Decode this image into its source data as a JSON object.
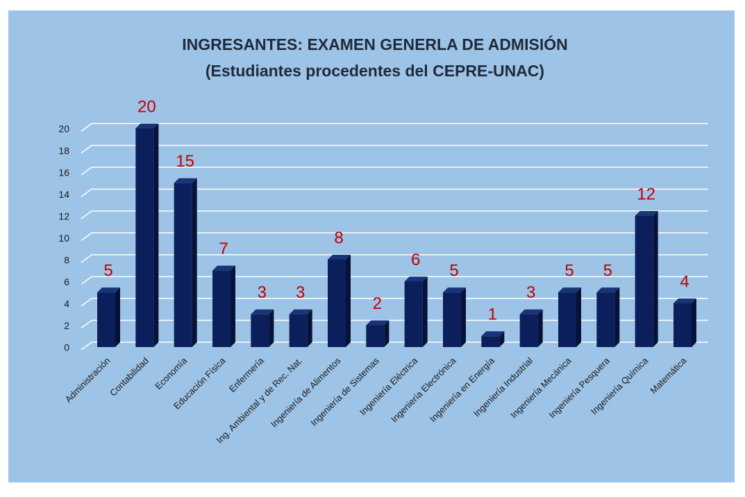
{
  "chart_data": {
    "type": "bar",
    "title": [
      "INGRESANTES: EXAMEN GENERLA DE ADMISIÓN",
      "(Estudiantes procedentes del CEPRE-UNAC)"
    ],
    "categories": [
      "Administración",
      "Contabilidad",
      "Economía",
      "Educación Física",
      "Enfermería",
      "Ing. Ambiental y de Rec. Nat.",
      "Ingeniería de Alimentos",
      "Ingeniería de Sistemas",
      "Ingeniería Eléctrica",
      "Ingeniería Electrónica",
      "Ingeniería en Energía",
      "Ingeniería Industrial",
      "Ingeniería Mecánica",
      "Ingeniería Pesquera",
      "Ingeniería Química",
      "Matemática"
    ],
    "values": [
      5,
      20,
      15,
      7,
      3,
      3,
      8,
      2,
      6,
      5,
      1,
      3,
      5,
      5,
      12,
      4
    ],
    "color": "#0b1f5c",
    "label_color": "#c00000",
    "ylim": [
      0,
      20
    ],
    "yticks": [
      0,
      2,
      4,
      6,
      8,
      10,
      12,
      14,
      16,
      18,
      20
    ],
    "grid": true
  }
}
